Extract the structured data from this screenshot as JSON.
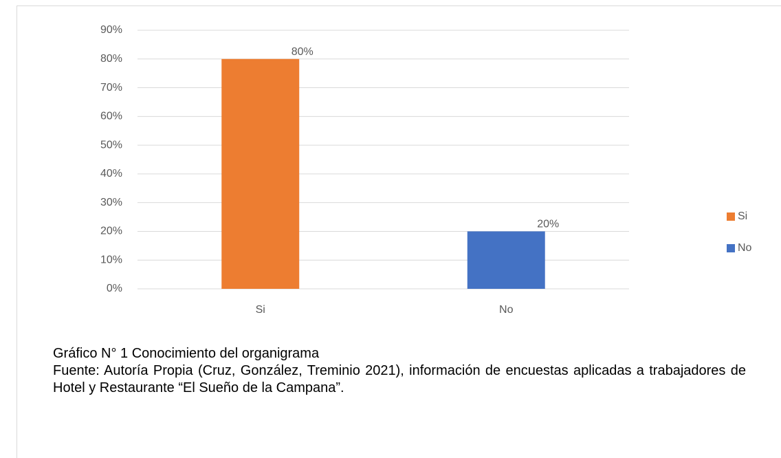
{
  "chart_data": {
    "type": "bar",
    "categories": [
      "Si",
      "No"
    ],
    "values": [
      80,
      20
    ],
    "value_labels": [
      "80%",
      "20%"
    ],
    "colors": [
      "#ed7d31",
      "#4472c4"
    ],
    "ylim": [
      0,
      90
    ],
    "yticks": [
      {
        "value": 0,
        "label": "0%"
      },
      {
        "value": 10,
        "label": "10%"
      },
      {
        "value": 20,
        "label": "20%"
      },
      {
        "value": 30,
        "label": "30%"
      },
      {
        "value": 40,
        "label": "40%"
      },
      {
        "value": 50,
        "label": "50%"
      },
      {
        "value": 60,
        "label": "60%"
      },
      {
        "value": 70,
        "label": "70%"
      },
      {
        "value": 80,
        "label": "80%"
      },
      {
        "value": 90,
        "label": "90%"
      }
    ],
    "grid": true,
    "legend": "right"
  },
  "caption": {
    "title": "Gráfico N° 1 Conocimiento del organigrama",
    "source": "Fuente: Autoría Propia (Cruz, González, Treminio 2021), información de encuestas aplicadas a trabajadores de Hotel y Restaurante “El Sueño de la Campana”."
  }
}
